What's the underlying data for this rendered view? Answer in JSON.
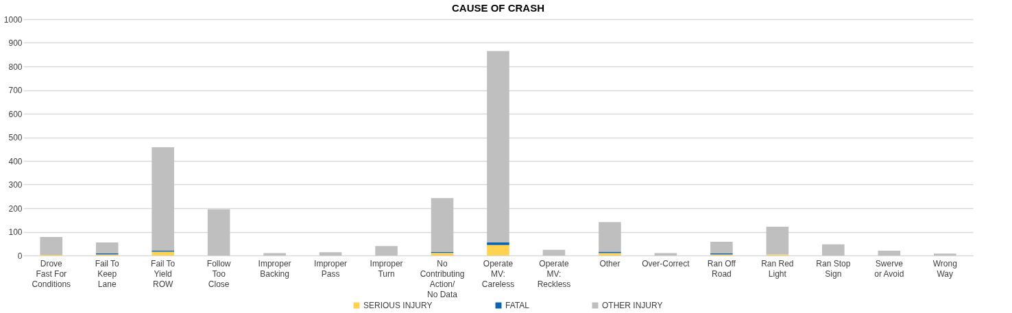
{
  "chart_data": {
    "type": "bar",
    "title": "CAUSE OF CRASH",
    "stacked": true,
    "categories": [
      "Drove Fast For Conditions",
      "Fail To Keep Lane",
      "Fail To Yield ROW",
      "Follow Too Close",
      "Improper Backing",
      "Improper Pass",
      "Improper Turn",
      "No Contributing Action/ No Data",
      "Operate MV: Careless",
      "Operate MV: Reckless",
      "Other",
      "Over-Correct",
      "Ran Off Road",
      "Ran Red Light",
      "Ran Stop Sign",
      "Swerve or Avoid",
      "Wrong Way"
    ],
    "series": [
      {
        "name": "SERIOUS INJURY",
        "color": "#ffd34f",
        "values": [
          3,
          4,
          16,
          0,
          0,
          0,
          0,
          11,
          44,
          0,
          10,
          0,
          4,
          4,
          0,
          0,
          0
        ]
      },
      {
        "name": "FATAL",
        "color": "#0e64ae",
        "values": [
          0,
          5,
          4,
          0,
          0,
          0,
          0,
          4,
          11,
          0,
          6,
          0,
          5,
          0,
          0,
          0,
          0
        ]
      },
      {
        "name": "OTHER INJURY",
        "color": "#bfbfbf",
        "values": [
          75,
          46,
          438,
          196,
          10,
          14,
          40,
          228,
          810,
          24,
          125,
          10,
          49,
          118,
          47,
          20,
          8
        ]
      }
    ],
    "ylim": [
      0,
      1000
    ],
    "yticks": [
      0,
      100,
      200,
      300,
      400,
      500,
      600,
      700,
      800,
      900,
      1000
    ],
    "grid": "y",
    "legend": "bottom"
  }
}
